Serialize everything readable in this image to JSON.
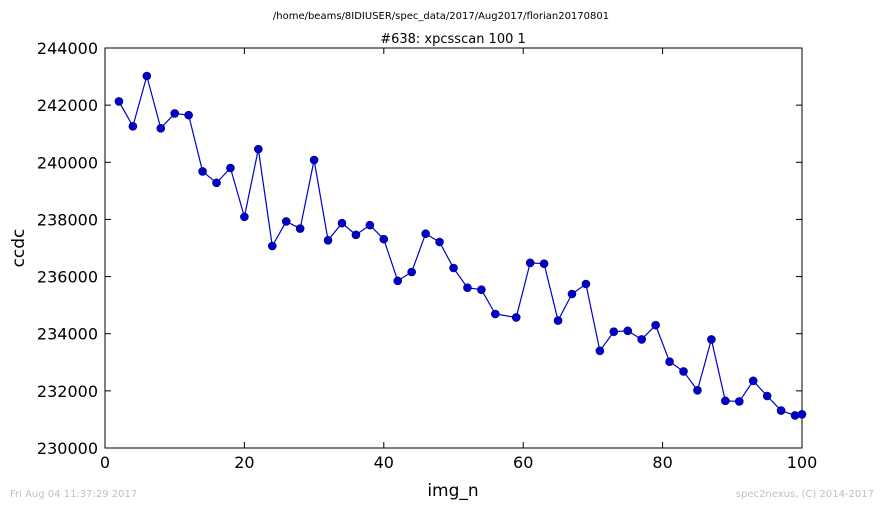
{
  "header": {
    "path": "/home/beams/8IDIUSER/spec_data/2017/Aug2017/florian20170801"
  },
  "footer": {
    "timestamp": "Fri Aug 04 11:37:29 2017",
    "credit": "spec2nexus, (C) 2014-2017"
  },
  "chart_data": {
    "type": "line",
    "title": "#638: xpcsscan 100 1",
    "xlabel": "img_n",
    "ylabel": "ccdc",
    "xlim": [
      0,
      100
    ],
    "ylim": [
      230000,
      244000
    ],
    "x_ticks": [
      0,
      20,
      40,
      60,
      80,
      100
    ],
    "y_ticks": [
      230000,
      232000,
      234000,
      236000,
      238000,
      240000,
      242000,
      244000
    ],
    "x_tick_labels": [
      "0",
      "20",
      "40",
      "60",
      "80",
      "100"
    ],
    "y_tick_labels": [
      "230000",
      "232000",
      "234000",
      "236000",
      "238000",
      "240000",
      "242000",
      "244000"
    ],
    "grid": false,
    "line_color": "#0000cc",
    "marker_color": "#0000cc",
    "series": [
      {
        "x": [
          2,
          4,
          6,
          8,
          10,
          12,
          14,
          16,
          18,
          20,
          22,
          24,
          26,
          28,
          30,
          32,
          34,
          36,
          38,
          40,
          42,
          44,
          46,
          48,
          50,
          52,
          54,
          56,
          59,
          61,
          63,
          65,
          67,
          69,
          71,
          73,
          75,
          77,
          79,
          81,
          83,
          85,
          87,
          89,
          91,
          93,
          95,
          97,
          99,
          100
        ],
        "y": [
          242130,
          241260,
          243020,
          241190,
          241710,
          241650,
          239680,
          239280,
          239800,
          238090,
          240460,
          237070,
          237930,
          237680,
          240080,
          237270,
          237870,
          237460,
          237800,
          237310,
          235850,
          236160,
          237500,
          237210,
          236300,
          235610,
          235540,
          234690,
          234570,
          236480,
          236450,
          234460,
          235390,
          235740,
          233400,
          234070,
          234100,
          233800,
          234300,
          233020,
          232680,
          232020,
          233800,
          231650,
          231630,
          232350,
          231820,
          231310,
          231140,
          231180
        ]
      }
    ]
  }
}
